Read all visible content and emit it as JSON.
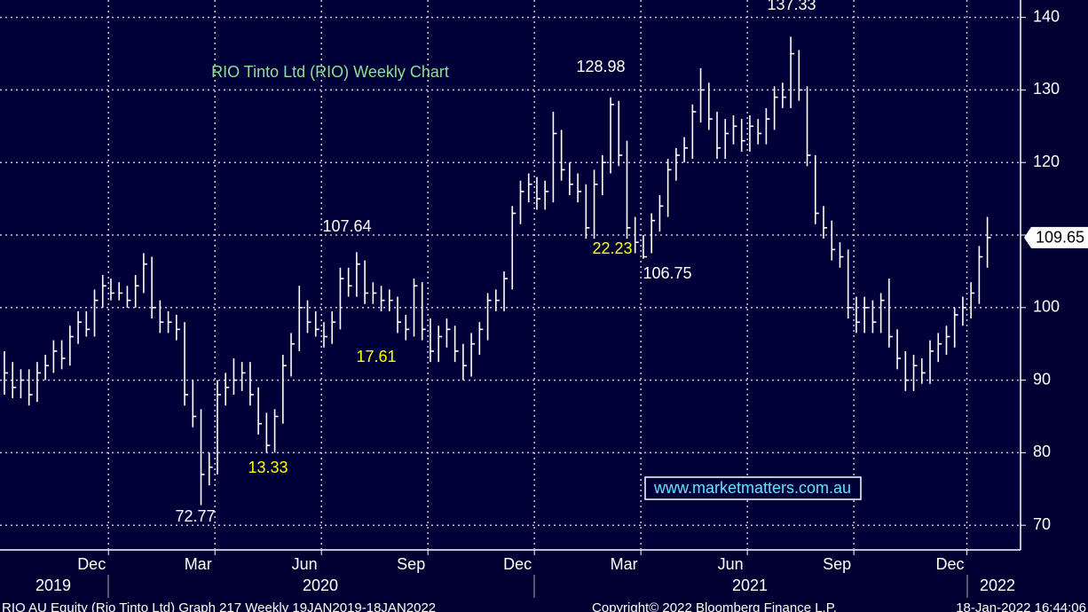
{
  "chart_data": {
    "type": "ohlc",
    "title": "RIO Tinto Ltd (RIO) Weekly Chart",
    "color": "#ffffff",
    "grid": true,
    "high": [
      94,
      92.5,
      91.5,
      91.5,
      92.5,
      93.5,
      95.5,
      95.5,
      97.5,
      99.5,
      99.5,
      102.5,
      104.5,
      104,
      103.5,
      103,
      104.5,
      107.5,
      107,
      101,
      99.5,
      99,
      98,
      90,
      86,
      80,
      90,
      91,
      93,
      92.5,
      92.5,
      89,
      85.5,
      86,
      93.5,
      96.5,
      103,
      101,
      99.5,
      98,
      99.5,
      105.5,
      105.5,
      107.64,
      106.5,
      103.5,
      103,
      102.5,
      101.5,
      99,
      104,
      103.5,
      98.5,
      97.5,
      98.5,
      97.5,
      95,
      96.5,
      98,
      102,
      102.5,
      105,
      114,
      117.5,
      118.5,
      118,
      117.5,
      127,
      124.5,
      120,
      118.5,
      117,
      119,
      121,
      128.98,
      128.5,
      123,
      112.5,
      110,
      113,
      115.5,
      120.5,
      122,
      123.5,
      128,
      133,
      131,
      127,
      126,
      126.5,
      126,
      126.5,
      126,
      127.5,
      130.5,
      131,
      137.33,
      135.5,
      130.5,
      121,
      114,
      112,
      109,
      108,
      101.5,
      101.5,
      101,
      102,
      104,
      97,
      94,
      93.5,
      93,
      95.5,
      96.5,
      97.5,
      100,
      101.5,
      103.5,
      108.5,
      112.5
    ],
    "low": [
      88,
      87.5,
      87.5,
      86.5,
      87,
      90,
      91,
      91.5,
      92,
      95,
      96,
      96,
      100,
      101,
      101,
      100,
      100,
      102,
      98.5,
      96.5,
      96.5,
      95.5,
      86.5,
      83.5,
      72.77,
      75.5,
      77,
      86.5,
      88,
      88.5,
      86.5,
      82.5,
      80,
      80,
      84,
      90.5,
      94,
      96.5,
      96,
      94.5,
      95,
      97,
      101.5,
      101.5,
      100.5,
      100.5,
      99.5,
      99.5,
      96.5,
      95.5,
      96,
      95.5,
      92.5,
      92.5,
      94.5,
      92.5,
      90,
      90.5,
      93.5,
      95.5,
      99.5,
      99.5,
      102.5,
      111.5,
      114.5,
      113.5,
      113.5,
      114.5,
      117.5,
      115.5,
      114.5,
      109.5,
      109.5,
      115.5,
      118.5,
      119.5,
      109.5,
      107.5,
      106.75,
      107.5,
      110.5,
      112.5,
      117.5,
      120,
      120.5,
      125.5,
      124.5,
      120.5,
      120.5,
      122.5,
      121.5,
      121.5,
      122.5,
      122.5,
      124.5,
      127.5,
      127.5,
      128.5,
      119.5,
      111.5,
      109.5,
      106.5,
      105.5,
      98.5,
      96.5,
      96.5,
      96.5,
      96.5,
      94.5,
      91.5,
      88.5,
      88.5,
      89.5,
      89.5,
      92.5,
      93.5,
      94.5,
      97.5,
      98.5,
      100.5,
      105.5
    ],
    "close": [
      91,
      89,
      90,
      88,
      91,
      92,
      94,
      93,
      96,
      98,
      97,
      101,
      103,
      102,
      102,
      101,
      103,
      106,
      100,
      98,
      98,
      97,
      88,
      85,
      77,
      78,
      88,
      89,
      90,
      91,
      88,
      84,
      81,
      85,
      92,
      95,
      100,
      98,
      97,
      96,
      98,
      104,
      103,
      106,
      102,
      102,
      101,
      101,
      98,
      97,
      103,
      97,
      94,
      96,
      97,
      94,
      92,
      95,
      97,
      101,
      101,
      104,
      113,
      116,
      117,
      115,
      116,
      124,
      119,
      117,
      116,
      111,
      117,
      120,
      128,
      121,
      111,
      109,
      107,
      112,
      114,
      119,
      121,
      122,
      127,
      130,
      126,
      122,
      124,
      125,
      123,
      125,
      124,
      126,
      129,
      129,
      135,
      130,
      121,
      113,
      111,
      108,
      107,
      100,
      98,
      100,
      98,
      101,
      96,
      93,
      90,
      92,
      91,
      94,
      95,
      96,
      99,
      100,
      102,
      107,
      109.65
    ],
    "xlim": [
      -0.54,
      124.05
    ],
    "ylim": [
      66.6,
      142.4
    ],
    "yticks": [
      70,
      80,
      90,
      100,
      110,
      120,
      130,
      140
    ],
    "xticks": [
      {
        "value": 12.7,
        "label": "Dec"
      },
      {
        "value": 25.7,
        "label": "Mar"
      },
      {
        "value": 38.7,
        "label": "Jun"
      },
      {
        "value": 51.7,
        "label": "Sep"
      },
      {
        "value": 64.7,
        "label": "Dec"
      },
      {
        "value": 77.7,
        "label": "Mar"
      },
      {
        "value": 90.7,
        "label": "Jun"
      },
      {
        "value": 103.7,
        "label": "Sep"
      },
      {
        "value": 117.5,
        "label": "Dec"
      }
    ],
    "year_labels": [
      "2019",
      "2020",
      "2021",
      "2022"
    ],
    "annotations": [
      "137.33",
      "128.98",
      "107.64",
      "106.75",
      "72.77"
    ],
    "change_labels": [
      "13.33",
      "17.61",
      "22.23"
    ],
    "watermark": "www.marketmatters.com.au",
    "footer": [
      "RIO AU Equity (Rio Tinto Ltd) Graph 217  Weekly 19JAN2019-18JAN2022",
      "Copyright© 2022 Bloomberg Finance L.P.",
      "18-Jan-2022 16:44:06"
    ]
  }
}
